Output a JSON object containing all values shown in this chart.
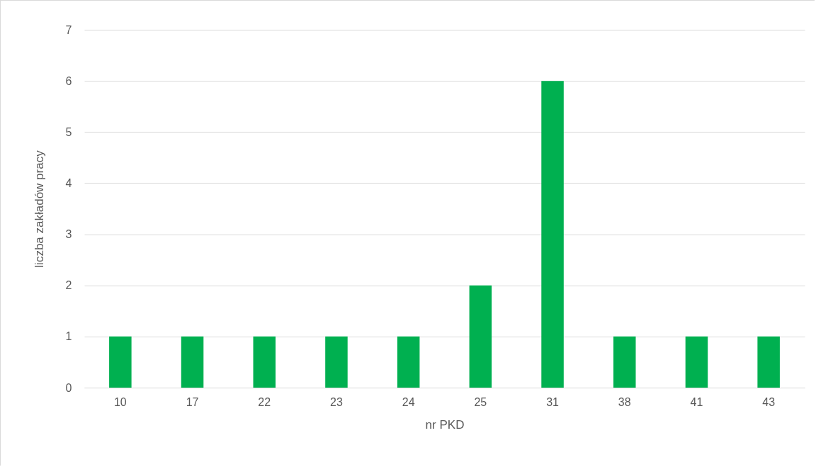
{
  "chart_data": {
    "type": "bar",
    "xlabel": "nr PKD",
    "ylabel": "liczba zakładów pracy",
    "categories": [
      "10",
      "17",
      "22",
      "23",
      "24",
      "25",
      "31",
      "38",
      "41",
      "43"
    ],
    "values": [
      1,
      1,
      1,
      1,
      1,
      2,
      6,
      1,
      1,
      1
    ],
    "color": "#00b050",
    "ylim": [
      0,
      7
    ],
    "yticks": [
      0,
      1,
      2,
      3,
      4,
      5,
      6,
      7
    ],
    "grid": "y",
    "legend": false
  }
}
